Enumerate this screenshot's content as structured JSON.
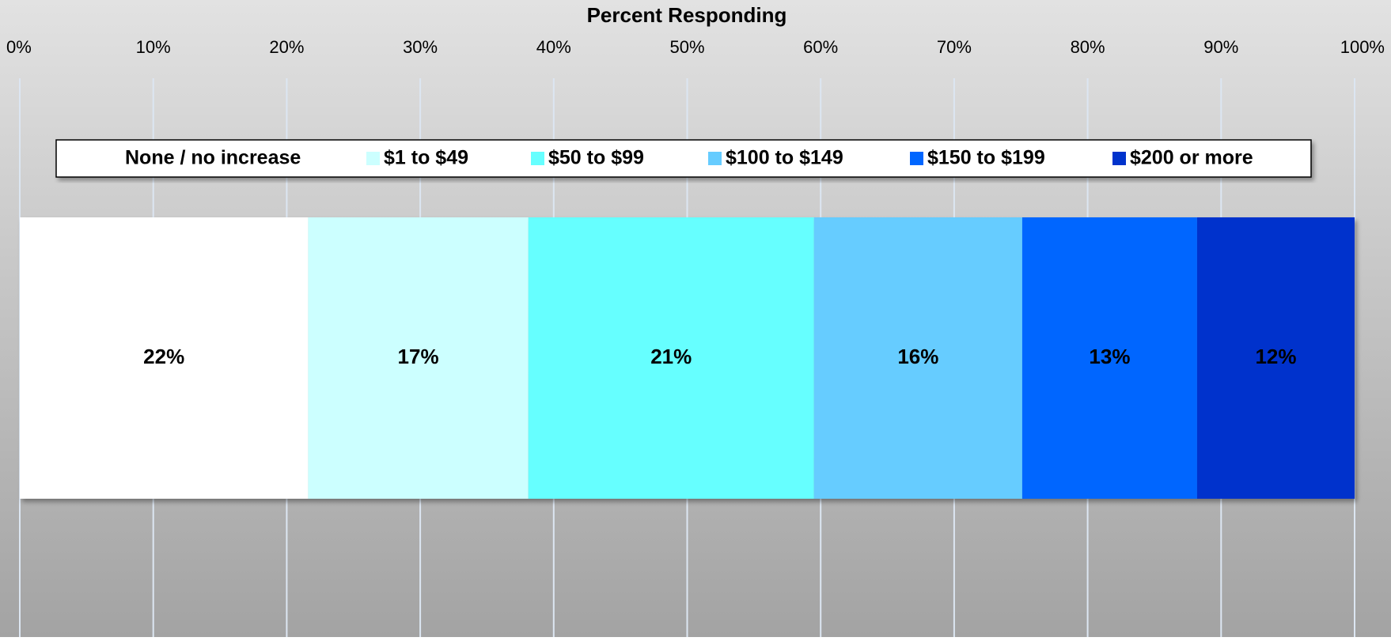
{
  "chart_data": {
    "type": "stacked-bar",
    "orientation": "horizontal",
    "title": "Percent Responding",
    "series": [
      {
        "name": "None / no increase",
        "color": "#ffffff",
        "values": [
          21.6
        ],
        "value_labels": [
          "22%"
        ]
      },
      {
        "name": "$1 to $49",
        "color": "#ccffff",
        "values": [
          16.5
        ],
        "value_labels": [
          "17%"
        ]
      },
      {
        "name": "$50 to $99",
        "color": "#66ffff",
        "values": [
          21.4
        ],
        "value_labels": [
          "21%"
        ]
      },
      {
        "name": "$100 to $149",
        "color": "#66ccff",
        "values": [
          15.6
        ],
        "value_labels": [
          "16%"
        ]
      },
      {
        "name": "$150 to $199",
        "color": "#0066ff",
        "values": [
          13.1
        ],
        "value_labels": [
          "13%"
        ]
      },
      {
        "name": "$200 or more",
        "color": "#0033cc",
        "values": [
          11.8
        ],
        "value_labels": [
          "12%"
        ]
      }
    ],
    "xlim": [
      0,
      100
    ],
    "xticks": [
      {
        "value": 0,
        "label": "0%"
      },
      {
        "value": 10,
        "label": "10%"
      },
      {
        "value": 20,
        "label": "20%"
      },
      {
        "value": 30,
        "label": "30%"
      },
      {
        "value": 40,
        "label": "40%"
      },
      {
        "value": 50,
        "label": "50%"
      },
      {
        "value": 60,
        "label": "60%"
      },
      {
        "value": 70,
        "label": "70%"
      },
      {
        "value": 80,
        "label": "80%"
      },
      {
        "value": 90,
        "label": "90%"
      },
      {
        "value": 100,
        "label": "100%"
      }
    ],
    "grid": true,
    "legend": "top"
  }
}
